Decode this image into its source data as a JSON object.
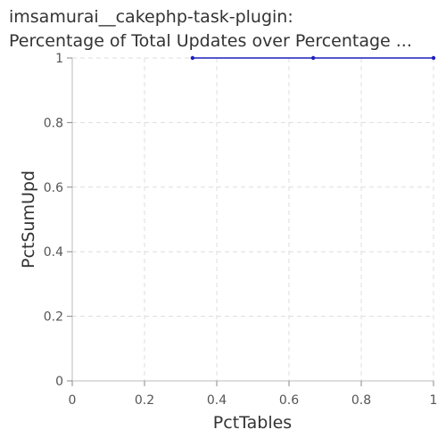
{
  "chart_data": {
    "type": "line",
    "title_lines": [
      "imsamurai__cakephp-task-plugin:",
      "Percentage of Total Updates over Percentage ..."
    ],
    "xlabel": "PctTables",
    "ylabel": "PctSumUpd",
    "xlim": [
      0,
      1
    ],
    "ylim": [
      0,
      1
    ],
    "x_ticks": [
      "0",
      "0.2",
      "0.4",
      "0.6",
      "0.8",
      "1"
    ],
    "y_ticks": [
      "0",
      "0.2",
      "0.4",
      "0.6",
      "0.8",
      "1"
    ],
    "grid": true,
    "legend": "none",
    "series": [
      {
        "color": "#1f1fbf",
        "x": [
          0.333,
          0.667,
          1.0
        ],
        "y": [
          1.0,
          1.0,
          1.0
        ]
      }
    ]
  }
}
